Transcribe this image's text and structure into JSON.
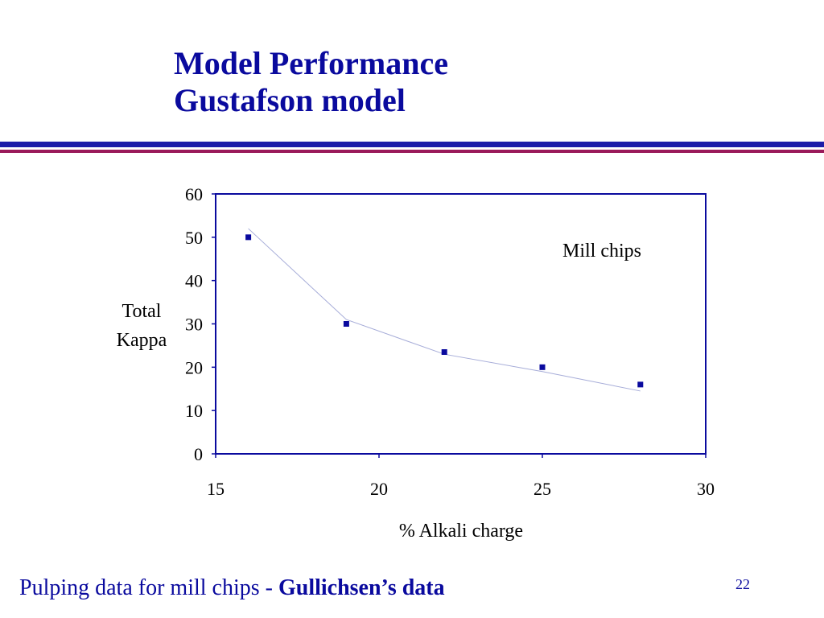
{
  "slide": {
    "title_line1": "Model Performance",
    "title_line2": "Gustafson model",
    "footer_text": "Pulping data for mill chips - ",
    "footer_bold": "Gullichsen’s data",
    "page_number": "22",
    "colors": {
      "title": "#0a0a9e",
      "rule_blue": "#1c1ca8",
      "rule_red": "#9a1a5a",
      "plot_border": "#0a0a9e",
      "marker": "#0a0a9e",
      "model_line": "#a6acd8"
    }
  },
  "chart_data": {
    "type": "scatter",
    "xlabel": "% Alkali charge",
    "ylabel_lines": [
      "Total",
      "Kappa"
    ],
    "xlim": [
      15,
      30
    ],
    "ylim": [
      0,
      60
    ],
    "x_ticks": [
      15,
      20,
      25,
      30
    ],
    "y_ticks": [
      0,
      10,
      20,
      30,
      40,
      50,
      60
    ],
    "grid": false,
    "annotation": "Mill chips",
    "series": [
      {
        "type": "scatter",
        "marker": "square",
        "x": [
          16,
          19,
          22,
          25,
          28
        ],
        "y": [
          50,
          30,
          23.5,
          20,
          16
        ]
      },
      {
        "type": "line",
        "x": [
          16,
          19,
          22,
          25,
          28
        ],
        "y": [
          52,
          31,
          23,
          19,
          14.5
        ]
      }
    ]
  }
}
